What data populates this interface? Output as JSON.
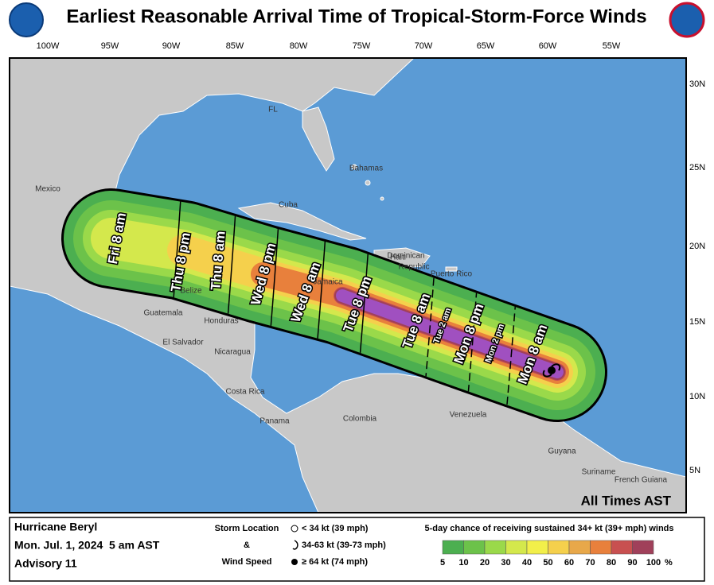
{
  "header": {
    "title": "Earliest Reasonable Arrival Time of Tropical-Storm-Force Winds"
  },
  "map": {
    "longitude_labels": [
      "100W",
      "95W",
      "90W",
      "85W",
      "80W",
      "75W",
      "70W",
      "65W",
      "60W",
      "55W"
    ],
    "latitude_labels": [
      "30N",
      "25N",
      "20N",
      "15N",
      "10N",
      "5N"
    ],
    "place_labels": [
      "Mexico",
      "FL",
      "Bahamas",
      "Cuba",
      "Haiti",
      "Dominican",
      "Republic",
      "Puerto Rico",
      "Jamaica",
      "Belize",
      "Guatemala",
      "Honduras",
      "El Salvador",
      "Nicaragua",
      "Costa Rica",
      "Panama",
      "Colombia",
      "Venezuela",
      "Guyana",
      "Suriname",
      "French Guiana"
    ],
    "arrival_time_labels": [
      "Fri 8 am",
      "Thu 8 pm",
      "Thu 8 am",
      "Wed 8 pm",
      "Wed 8 am",
      "Tue 8 pm",
      "Tue 8 am",
      "Tue 2 am",
      "Mon 8 pm",
      "Mon 2 pm",
      "Mon 8 am"
    ],
    "time_zone_note": "All Times AST"
  },
  "footer": {
    "storm_name": "Hurricane Beryl",
    "issued": "Mon. Jul. 1, 2024  5 am AST",
    "advisory": "Advisory 11",
    "storm_key": {
      "title_lines": [
        "Storm Location",
        "&",
        "Wind Speed"
      ],
      "items": [
        "< 34 kt (39 mph)",
        "34-63 kt (39-73 mph)",
        "≥ 64 kt (74 mph)"
      ]
    },
    "probability_scale": {
      "title": "5-day chance of receiving sustained 34+ kt (39+ mph) winds",
      "ticks": [
        5,
        10,
        20,
        30,
        40,
        50,
        60,
        70,
        80,
        90,
        100
      ],
      "unit": "%",
      "colors": [
        "#4caf50",
        "#6cc24a",
        "#9ad94a",
        "#d4e84c",
        "#f2ef4a",
        "#f5d04c",
        "#e8a84a",
        "#e8803c",
        "#c85050",
        "#a0405a"
      ]
    }
  }
}
